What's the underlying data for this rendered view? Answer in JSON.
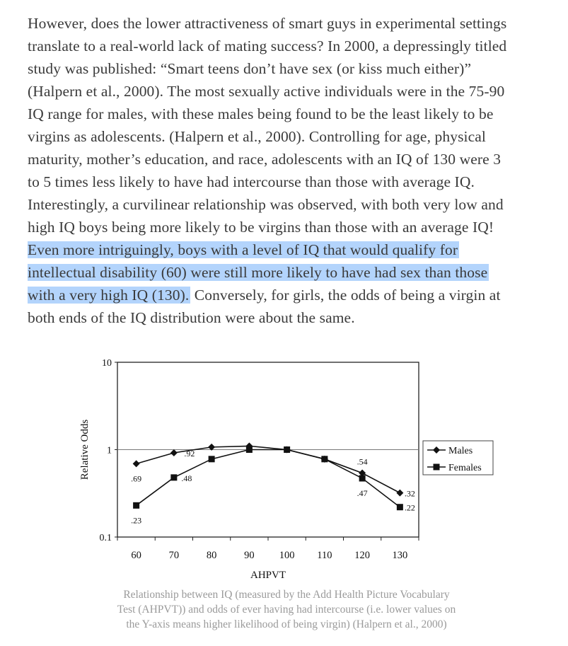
{
  "paragraph": {
    "lines": [
      {
        "text": "However, does the lower attractiveness of smart guys in experimental settings",
        "highlight": ""
      },
      {
        "text": "translate to a real-world lack of mating success? In 2000, a depressingly titled",
        "highlight": ""
      },
      {
        "text": "study was published: “Smart teens don’t have sex (or kiss much either)”",
        "highlight": ""
      },
      {
        "text": "(Halpern et al., 2000).  The most sexually active individuals were in the 75-90",
        "highlight": ""
      },
      {
        "text": "IQ range for males, with these males being found to be the least likely to be",
        "highlight": ""
      },
      {
        "text": "virgins as adolescents. (Halpern et al., 2000). Controlling for age, physical",
        "highlight": ""
      },
      {
        "text": "maturity, mother’s education, and race, adolescents with an IQ of 130 were 3",
        "highlight": ""
      },
      {
        "text": "to 5 times less likely to have had intercourse than those with average IQ.",
        "highlight": ""
      },
      {
        "text": "Interestingly, a curvilinear relationship was observed, with both very low and",
        "highlight": ""
      },
      {
        "text": "high IQ boys being more likely to be virgins than those with an average IQ!",
        "highlight": ""
      },
      {
        "text": "",
        "highlight": "Even more intriguingly, boys with a level of IQ that would qualify for"
      },
      {
        "text": "",
        "highlight": "intellectual disability (60) were still more likely to have had sex than those"
      },
      {
        "text": " Conversely, for girls, the odds of being a virgin at",
        "highlight": "with a very high IQ (130)."
      },
      {
        "text": "both ends of the IQ distribution were about the same.",
        "highlight": ""
      }
    ]
  },
  "chart_data": {
    "type": "line",
    "xlabel": "AHPVT",
    "ylabel": "Relative Odds",
    "yscale": "log",
    "ylim": [
      0.1,
      10
    ],
    "xlim": [
      55,
      135
    ],
    "yticks": [
      "0.1",
      "1",
      "10"
    ],
    "x": [
      60,
      70,
      80,
      90,
      100,
      110,
      120,
      130
    ],
    "xtick_labels": [
      "60",
      "70",
      "80",
      "90",
      "100",
      "110",
      "120",
      "130"
    ],
    "reference_line": 1,
    "legend_position": "right",
    "series": [
      {
        "name": "Males",
        "marker": "diamond",
        "values": [
          0.69,
          0.92,
          1.07,
          1.1,
          1.0,
          0.78,
          0.54,
          0.32
        ],
        "labels": [
          ".69",
          ".92",
          "",
          "",
          "",
          "",
          ".54",
          ".32"
        ]
      },
      {
        "name": "Females",
        "marker": "square",
        "values": [
          0.23,
          0.48,
          0.78,
          1.0,
          1.0,
          0.78,
          0.47,
          0.22
        ],
        "labels": [
          ".23",
          ".48",
          "",
          "",
          "",
          "",
          ".47",
          ".22"
        ]
      }
    ]
  },
  "caption": {
    "lines": [
      "Relationship between IQ (measured by the Add Health Picture Vocabulary",
      "Test (AHPVT)) and odds of ever having had intercourse (i.e. lower values on",
      "the Y-axis means higher likelihood of being virgin) (Halpern et al., 2000)"
    ]
  },
  "colors": {
    "highlight": "#b3d4fc",
    "text": "#3a3a3a",
    "caption": "#9a9a9a"
  }
}
